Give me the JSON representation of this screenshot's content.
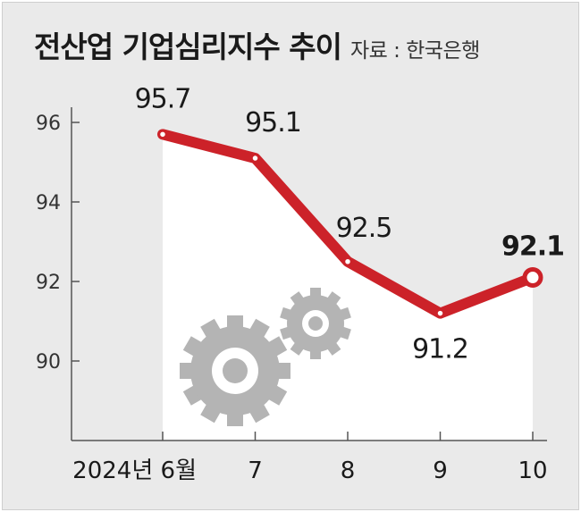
{
  "title": "전산업 기업심리지수 추이",
  "source": "자료 : 한국은행",
  "chart_data": {
    "type": "line",
    "categories": [
      "2024년 6월",
      "7",
      "8",
      "9",
      "10"
    ],
    "series": [
      {
        "values": [
          95.7,
          95.1,
          92.5,
          91.2,
          92.1
        ]
      }
    ],
    "data_labels": [
      "95.7",
      "95.1",
      "92.5",
      "91.2",
      "92.1"
    ],
    "ylim": [
      88,
      97
    ],
    "yticks": [
      "90",
      "92",
      "94",
      "96"
    ],
    "grid": false,
    "colors": {
      "line": "#cc2229",
      "marker_fill": "#ffffff",
      "background": "#eaeaea",
      "plot_area": "#ffffff",
      "gear": "#b4b4b4"
    }
  },
  "decoration": {
    "icon": "gears-icon"
  }
}
